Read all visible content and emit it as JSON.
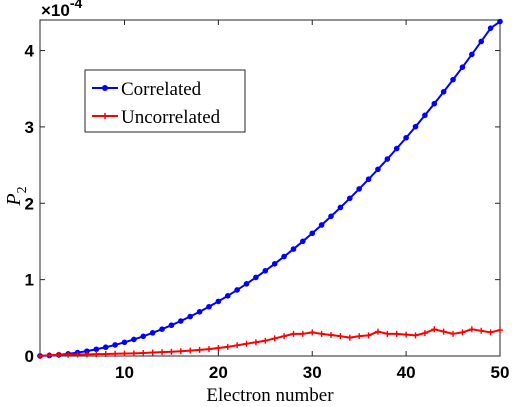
{
  "chart_data": {
    "type": "line",
    "xlabel": "Electron number",
    "ylabel": "P",
    "ylabel_subscript": "2",
    "y_exponent_label": "×10",
    "y_exponent_power": "-4",
    "xlim": [
      1,
      50
    ],
    "ylim": [
      0,
      4.4
    ],
    "x_ticks": [
      10,
      20,
      30,
      40,
      50
    ],
    "y_ticks": [
      0,
      1,
      2,
      3,
      4
    ],
    "grid": false,
    "legend_position": "top-left",
    "x": [
      1,
      2,
      3,
      4,
      5,
      6,
      7,
      8,
      9,
      10,
      11,
      12,
      13,
      14,
      15,
      16,
      17,
      18,
      19,
      20,
      21,
      22,
      23,
      24,
      25,
      26,
      27,
      28,
      29,
      30,
      31,
      32,
      33,
      34,
      35,
      36,
      37,
      38,
      39,
      40,
      41,
      42,
      43,
      44,
      45,
      46,
      47,
      48,
      49,
      50
    ],
    "series": [
      {
        "name": "Correlated",
        "color": "#0000ff",
        "marker": "dot",
        "values": [
          0.002,
          0.007,
          0.016,
          0.028,
          0.045,
          0.064,
          0.088,
          0.115,
          0.145,
          0.179,
          0.217,
          0.258,
          0.303,
          0.351,
          0.403,
          0.458,
          0.517,
          0.579,
          0.645,
          0.715,
          0.788,
          0.865,
          0.945,
          1.029,
          1.116,
          1.207,
          1.302,
          1.4,
          1.502,
          1.607,
          1.716,
          1.829,
          1.945,
          2.065,
          2.188,
          2.315,
          2.445,
          2.579,
          2.717,
          2.858,
          3.003,
          3.152,
          3.304,
          3.46,
          3.619,
          3.782,
          3.949,
          4.119,
          4.293,
          4.38
        ]
      },
      {
        "name": "Uncorrelated",
        "color": "#ff0000",
        "marker": "plus",
        "values": [
          0.0,
          0.01,
          0.015,
          0.018,
          0.02,
          0.022,
          0.024,
          0.027,
          0.03,
          0.032,
          0.035,
          0.04,
          0.045,
          0.05,
          0.056,
          0.062,
          0.07,
          0.08,
          0.09,
          0.105,
          0.12,
          0.14,
          0.16,
          0.18,
          0.2,
          0.23,
          0.26,
          0.29,
          0.29,
          0.31,
          0.29,
          0.275,
          0.26,
          0.24,
          0.26,
          0.27,
          0.32,
          0.29,
          0.29,
          0.28,
          0.27,
          0.3,
          0.35,
          0.32,
          0.29,
          0.31,
          0.35,
          0.33,
          0.31,
          0.34
        ]
      }
    ]
  }
}
